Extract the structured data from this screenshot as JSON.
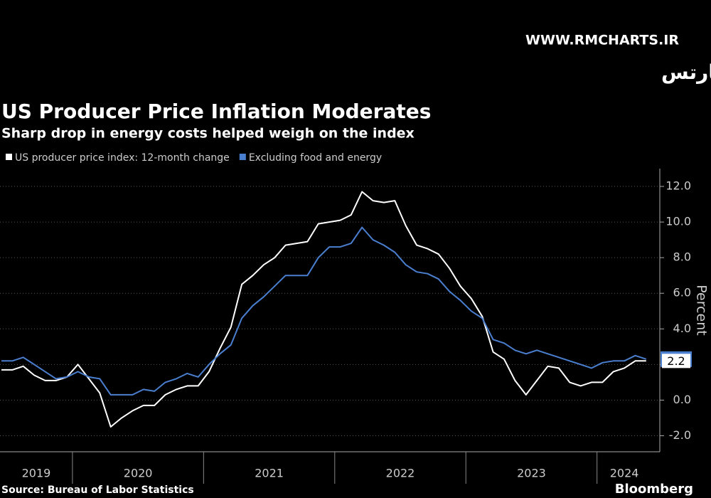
{
  "watermark": {
    "site": "WWW.RMCHARTS.IR",
    "name": "آر ام چارتس"
  },
  "chart_data": {
    "type": "line",
    "title": "US Producer Price Inflation Moderates",
    "subtitle": "Sharp drop in energy costs helped weigh on the index",
    "ylabel": "Percent",
    "source": "Source: Bureau of Labor Statistics",
    "brand": "Bloomberg",
    "x": [
      2019,
      2019,
      2019,
      2019,
      2019,
      2019,
      2019,
      2020,
      2020,
      2020,
      2020,
      2020,
      2020,
      2020,
      2020,
      2020,
      2020,
      2020,
      2020,
      2021,
      2021,
      2021,
      2021,
      2021,
      2021,
      2021,
      2021,
      2021,
      2021,
      2021,
      2021,
      2022,
      2022,
      2022,
      2022,
      2022,
      2022,
      2022,
      2022,
      2022,
      2022,
      2022,
      2022,
      2023,
      2023,
      2023,
      2023,
      2023,
      2023,
      2023,
      2023,
      2023,
      2023,
      2023,
      2023,
      2024,
      2024,
      2024,
      2024,
      2024
    ],
    "xticks": [
      2019,
      2020,
      2021,
      2022,
      2023,
      2024
    ],
    "series": [
      {
        "name": "US producer price index: 12-month change",
        "color": "#ffffff",
        "values": [
          1.7,
          1.7,
          1.9,
          1.4,
          1.1,
          1.1,
          1.3,
          2.0,
          1.2,
          0.4,
          -1.5,
          -1.0,
          -0.6,
          -0.3,
          -0.3,
          0.3,
          0.6,
          0.8,
          0.8,
          1.6,
          2.9,
          4.1,
          6.5,
          7.0,
          7.6,
          8.0,
          8.7,
          8.8,
          8.9,
          9.9,
          10.0,
          10.1,
          10.4,
          11.7,
          11.2,
          11.1,
          11.2,
          9.8,
          8.7,
          8.5,
          8.2,
          7.4,
          6.4,
          5.7,
          4.7,
          2.7,
          2.3,
          1.1,
          0.3,
          1.1,
          1.9,
          1.8,
          1.0,
          0.8,
          1.0,
          1.0,
          1.6,
          1.8,
          2.2,
          2.2
        ]
      },
      {
        "name": "Excluding food and energy",
        "color": "#4a7fd0",
        "values": [
          2.2,
          2.2,
          2.4,
          2.0,
          1.6,
          1.2,
          1.3,
          1.6,
          1.3,
          1.2,
          0.3,
          0.3,
          0.3,
          0.6,
          0.5,
          1.0,
          1.2,
          1.5,
          1.3,
          2.0,
          2.6,
          3.1,
          4.6,
          5.3,
          5.8,
          6.4,
          7.0,
          7.0,
          7.0,
          8.0,
          8.6,
          8.6,
          8.8,
          9.7,
          9.0,
          8.7,
          8.3,
          7.6,
          7.2,
          7.1,
          6.8,
          6.1,
          5.6,
          5.0,
          4.6,
          3.4,
          3.2,
          2.8,
          2.6,
          2.8,
          2.6,
          2.4,
          2.2,
          2.0,
          1.8,
          2.1,
          2.2,
          2.2,
          2.5,
          2.3
        ]
      }
    ],
    "last_label": "2.2",
    "ylim": [
      -2.9,
      13
    ],
    "yticks": [
      {
        "value": -2,
        "label": "-2.0"
      },
      {
        "value": 0,
        "label": "0.0"
      },
      {
        "value": 2,
        "label": "2.0"
      },
      {
        "value": 4,
        "label": "4.0"
      },
      {
        "value": 6,
        "label": "6.0"
      },
      {
        "value": 8,
        "label": "8.0"
      },
      {
        "value": 10,
        "label": "10.0"
      },
      {
        "value": 12,
        "label": "12.0"
      }
    ],
    "grid": true
  }
}
